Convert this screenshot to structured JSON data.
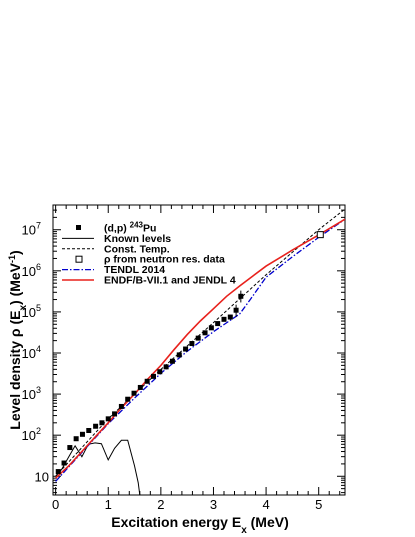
{
  "chart_data": {
    "type": "scatter",
    "title": "",
    "xlabel": "Excitation energy E",
    "xlabel_sub": "x",
    "xlabel_unit": " (MeV)",
    "ylabel": "Level density  ρ (E",
    "ylabel_sub": "x",
    "ylabel_unit": ") (MeV",
    "ylabel_sup": "-1",
    "ylabel_end": ")",
    "xlim": [
      -0.05,
      5.5
    ],
    "ylim": [
      3.5,
      40000000
    ],
    "yscale": "log",
    "grid": false,
    "legend_position": "top-left",
    "x_ticks": [
      {
        "value": 0,
        "label": "0"
      },
      {
        "value": 1,
        "label": "1"
      },
      {
        "value": 2,
        "label": "2"
      },
      {
        "value": 3,
        "label": "3"
      },
      {
        "value": 4,
        "label": "4"
      },
      {
        "value": 5,
        "label": "5"
      }
    ],
    "y_ticks": [
      {
        "value": 10,
        "base": "10",
        "exp": ""
      },
      {
        "value": 100,
        "base": "10",
        "exp": "2"
      },
      {
        "value": 1000,
        "base": "10",
        "exp": "3"
      },
      {
        "value": 10000,
        "base": "10",
        "exp": "4"
      },
      {
        "value": 100000,
        "base": "10",
        "exp": "5"
      },
      {
        "value": 1000000,
        "base": "10",
        "exp": "6"
      },
      {
        "value": 10000000,
        "base": "10",
        "exp": "7"
      }
    ],
    "legend": [
      {
        "key": "data",
        "label": "(d,p) ",
        "sup": "243",
        "after": "Pu"
      },
      {
        "key": "known",
        "label": "Known levels",
        "sup": "",
        "after": ""
      },
      {
        "key": "ct",
        "label": "Const. Temp.",
        "sup": "",
        "after": ""
      },
      {
        "key": "nres",
        "label": "ρ from neutron res. data",
        "sup": "",
        "after": ""
      },
      {
        "key": "tendl",
        "label": "TENDL 2014",
        "sup": "",
        "after": ""
      },
      {
        "key": "endf",
        "label": "ENDF/B-VII.1 and JENDL 4",
        "sup": "",
        "after": ""
      }
    ],
    "colors": {
      "data": "#000000",
      "known": "#000000",
      "ct": "#000000",
      "tendl": "#0000cc",
      "endf": "#e8211c"
    },
    "series": [
      {
        "key": "data",
        "name": "(d,p) 243Pu",
        "style": "filled-square",
        "points": [
          {
            "x": 0.05,
            "y": 13
          },
          {
            "x": 0.16,
            "y": 21
          },
          {
            "x": 0.27,
            "y": 50
          },
          {
            "x": 0.39,
            "y": 82
          },
          {
            "x": 0.51,
            "y": 105
          },
          {
            "x": 0.63,
            "y": 130
          },
          {
            "x": 0.76,
            "y": 165
          },
          {
            "x": 0.88,
            "y": 200
          },
          {
            "x": 1.0,
            "y": 250
          },
          {
            "x": 1.12,
            "y": 330
          },
          {
            "x": 1.25,
            "y": 500
          },
          {
            "x": 1.37,
            "y": 750
          },
          {
            "x": 1.49,
            "y": 1050
          },
          {
            "x": 1.61,
            "y": 1450
          },
          {
            "x": 1.74,
            "y": 2050
          },
          {
            "x": 1.86,
            "y": 2700
          },
          {
            "x": 1.98,
            "y": 3500
          },
          {
            "x": 2.1,
            "y": 4600
          },
          {
            "x": 2.22,
            "y": 6300
          },
          {
            "x": 2.35,
            "y": 9000
          },
          {
            "x": 2.47,
            "y": 12500
          },
          {
            "x": 2.59,
            "y": 17000
          },
          {
            "x": 2.71,
            "y": 23000
          },
          {
            "x": 2.84,
            "y": 31000
          },
          {
            "x": 2.96,
            "y": 41000
          },
          {
            "x": 3.08,
            "y": 52000
          },
          {
            "x": 3.2,
            "y": 66000
          },
          {
            "x": 3.32,
            "y": 75000
          },
          {
            "x": 3.43,
            "y": 110000
          },
          {
            "x": 3.52,
            "y": 240000
          }
        ],
        "error_bars": [
          {
            "x": 3.43,
            "lo": 75000,
            "hi": 150000
          },
          {
            "x": 3.52,
            "lo": 170000,
            "hi": 330000
          }
        ]
      },
      {
        "key": "known",
        "name": "Known levels",
        "style": "solid-thin",
        "points": [
          {
            "x": 0.0,
            "y": 10
          },
          {
            "x": 0.12,
            "y": 15
          },
          {
            "x": 0.25,
            "y": 30
          },
          {
            "x": 0.37,
            "y": 55
          },
          {
            "x": 0.5,
            "y": 30
          },
          {
            "x": 0.62,
            "y": 60
          },
          {
            "x": 0.75,
            "y": 65
          },
          {
            "x": 0.87,
            "y": 62
          },
          {
            "x": 1.0,
            "y": 25
          },
          {
            "x": 1.12,
            "y": 48
          },
          {
            "x": 1.25,
            "y": 75
          },
          {
            "x": 1.37,
            "y": 75
          },
          {
            "x": 1.5,
            "y": 18
          },
          {
            "x": 1.57,
            "y": 7
          },
          {
            "x": 1.6,
            "y": 3.5
          }
        ]
      },
      {
        "key": "ct",
        "name": "Const. Temp.",
        "style": "dashed",
        "points": [
          {
            "x": 0.0,
            "y": 10
          },
          {
            "x": 1.0,
            "y": 250
          },
          {
            "x": 2.0,
            "y": 4000
          },
          {
            "x": 3.0,
            "y": 55000
          },
          {
            "x": 4.0,
            "y": 800000
          },
          {
            "x": 5.0,
            "y": 10000000
          },
          {
            "x": 5.5,
            "y": 32000000
          }
        ]
      },
      {
        "key": "nres",
        "name": "ρ from neutron res. data",
        "style": "open-square",
        "points": [
          {
            "x": 5.03,
            "y": 7600000
          }
        ]
      },
      {
        "key": "tendl",
        "name": "TENDL 2014",
        "style": "dash-dot",
        "points": [
          {
            "x": 0.0,
            "y": 7.5
          },
          {
            "x": 0.5,
            "y": 38
          },
          {
            "x": 1.0,
            "y": 190
          },
          {
            "x": 1.5,
            "y": 800
          },
          {
            "x": 2.0,
            "y": 3200
          },
          {
            "x": 2.5,
            "y": 11000
          },
          {
            "x": 3.0,
            "y": 33000
          },
          {
            "x": 3.5,
            "y": 90000
          },
          {
            "x": 3.7,
            "y": 200000
          },
          {
            "x": 4.0,
            "y": 700000
          },
          {
            "x": 4.5,
            "y": 2200000
          },
          {
            "x": 5.0,
            "y": 6500000
          },
          {
            "x": 5.5,
            "y": 18000000
          }
        ]
      },
      {
        "key": "endf",
        "name": "ENDF/B-VII.1 and JENDL 4",
        "style": "solid",
        "points": [
          {
            "x": 0.0,
            "y": 9
          },
          {
            "x": 0.25,
            "y": 18
          },
          {
            "x": 0.5,
            "y": 40
          },
          {
            "x": 0.75,
            "y": 90
          },
          {
            "x": 1.0,
            "y": 200
          },
          {
            "x": 1.25,
            "y": 460
          },
          {
            "x": 1.5,
            "y": 1000
          },
          {
            "x": 1.75,
            "y": 2300
          },
          {
            "x": 2.0,
            "y": 5000
          },
          {
            "x": 2.25,
            "y": 12000
          },
          {
            "x": 2.5,
            "y": 28000
          },
          {
            "x": 2.75,
            "y": 60000
          },
          {
            "x": 3.0,
            "y": 120000
          },
          {
            "x": 3.25,
            "y": 240000
          },
          {
            "x": 3.5,
            "y": 430000
          },
          {
            "x": 3.75,
            "y": 750000
          },
          {
            "x": 4.0,
            "y": 1300000
          },
          {
            "x": 4.5,
            "y": 3200000
          },
          {
            "x": 5.0,
            "y": 7500000
          },
          {
            "x": 5.5,
            "y": 18000000
          }
        ]
      }
    ]
  }
}
